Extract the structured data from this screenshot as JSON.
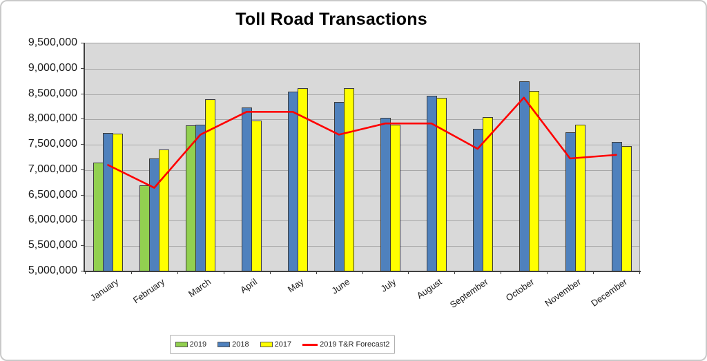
{
  "chart_data": {
    "type": "bar",
    "title": "Toll Road Transactions",
    "categories": [
      "January",
      "February",
      "March",
      "April",
      "May",
      "June",
      "July",
      "August",
      "September",
      "October",
      "November",
      "December"
    ],
    "series": [
      {
        "name": "2019",
        "kind": "bar",
        "color": "#92D050",
        "values": [
          7150000,
          6700000,
          7880000,
          null,
          null,
          null,
          null,
          null,
          null,
          null,
          null,
          null
        ]
      },
      {
        "name": "2018",
        "kind": "bar",
        "color": "#4F81BD",
        "values": [
          7730000,
          7230000,
          7890000,
          8240000,
          8550000,
          8340000,
          8030000,
          8470000,
          7810000,
          8750000,
          7750000,
          7560000
        ]
      },
      {
        "name": "2017",
        "kind": "bar",
        "color": "#FFFF00",
        "values": [
          7720000,
          7400000,
          8400000,
          7980000,
          8620000,
          8610000,
          7900000,
          8430000,
          8050000,
          8560000,
          7890000,
          7480000
        ]
      },
      {
        "name": "2019 T&R Forecast2",
        "kind": "line",
        "color": "#FF0000",
        "values": [
          7100000,
          6650000,
          7700000,
          8150000,
          8150000,
          7700000,
          7920000,
          7920000,
          7420000,
          8430000,
          7230000,
          7300000
        ]
      }
    ],
    "ylim": [
      5000000,
      9500000
    ],
    "y_tick_step": 500000,
    "y_tick_labels": [
      "9,500,000",
      "9,000,000",
      "8,500,000",
      "8,000,000",
      "7,500,000",
      "7,000,000",
      "6,500,000",
      "6,000,000",
      "5,500,000",
      "5,000,000"
    ],
    "grid": true,
    "legend_position": "bottom",
    "plot_bg": "#D9D9D9",
    "gridline_color": "#a8a8a8"
  }
}
